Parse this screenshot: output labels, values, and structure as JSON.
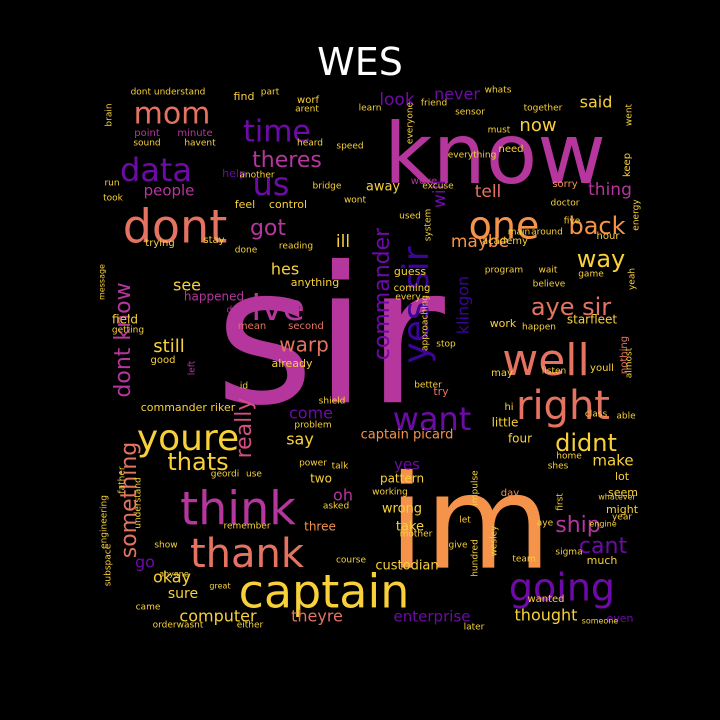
{
  "title": "WES",
  "palette": {
    "magenta": "#b5369c",
    "orange": "#f5934a",
    "yellow": "#f8d13a",
    "salmon": "#e57361",
    "violet": "#6e0ba8",
    "indigo": "#3d049b",
    "pink": "#d14f82"
  },
  "words": [
    {
      "text": "sir",
      "color": "#b5369c"
    },
    {
      "text": "im",
      "color": "#f5934a"
    },
    {
      "text": "know",
      "color": "#b5369c"
    },
    {
      "text": "captain",
      "color": "#f8d13a"
    },
    {
      "text": "think",
      "color": "#b5369c"
    },
    {
      "text": "dont",
      "color": "#e57361"
    },
    {
      "text": "going",
      "color": "#6e0ba8"
    },
    {
      "text": "thank",
      "color": "#e57361"
    },
    {
      "text": "well",
      "color": "#e57361"
    },
    {
      "text": "right",
      "color": "#e57361"
    },
    {
      "text": "one",
      "color": "#f5934a"
    },
    {
      "text": "youre",
      "color": "#f8d13a"
    },
    {
      "text": "yes sir",
      "color": "#3d049b"
    },
    {
      "text": "data",
      "color": "#6e0ba8"
    },
    {
      "text": "mom",
      "color": "#e57361"
    },
    {
      "text": "time",
      "color": "#6e0ba8"
    },
    {
      "text": "want",
      "color": "#6e0ba8"
    },
    {
      "text": "ive",
      "color": "#b5369c"
    },
    {
      "text": "us",
      "color": "#6e0ba8"
    },
    {
      "text": "theres",
      "color": "#b5369c"
    },
    {
      "text": "aye sir",
      "color": "#e57361"
    },
    {
      "text": "back",
      "color": "#f5934a"
    },
    {
      "text": "way",
      "color": "#f8d13a"
    },
    {
      "text": "commander",
      "color": "#6e0ba8"
    },
    {
      "text": "dont know",
      "color": "#b5369c"
    },
    {
      "text": "something",
      "color": "#e57361"
    },
    {
      "text": "really",
      "color": "#d14f82"
    },
    {
      "text": "got",
      "color": "#b5369c"
    },
    {
      "text": "ship",
      "color": "#b5369c"
    },
    {
      "text": "didnt",
      "color": "#f8d13a"
    },
    {
      "text": "cant",
      "color": "#6e0ba8"
    },
    {
      "text": "thats",
      "color": "#f8d13a"
    },
    {
      "text": "warp",
      "color": "#e57361"
    },
    {
      "text": "computer",
      "color": "#f8d13a"
    },
    {
      "text": "thought",
      "color": "#f8d13a"
    },
    {
      "text": "enterprise",
      "color": "#6e0ba8"
    },
    {
      "text": "theyre",
      "color": "#e57361"
    },
    {
      "text": "now",
      "color": "#f8d13a"
    },
    {
      "text": "said",
      "color": "#f8d13a"
    },
    {
      "text": "look",
      "color": "#6e0ba8"
    },
    {
      "text": "never",
      "color": "#6e0ba8"
    },
    {
      "text": "tell",
      "color": "#e57361"
    },
    {
      "text": "thing",
      "color": "#b5369c"
    },
    {
      "text": "people",
      "color": "#b5369c"
    },
    {
      "text": "maybe",
      "color": "#f5934a"
    },
    {
      "text": "will",
      "color": "#6e0ba8"
    },
    {
      "text": "klingon",
      "color": "#3d049b"
    },
    {
      "text": "still",
      "color": "#f8d13a"
    },
    {
      "text": "see",
      "color": "#f8d13a"
    },
    {
      "text": "hes",
      "color": "#f8d13a"
    },
    {
      "text": "ill",
      "color": "#f8d13a"
    },
    {
      "text": "make",
      "color": "#f8d13a"
    },
    {
      "text": "say",
      "color": "#f8d13a"
    },
    {
      "text": "come",
      "color": "#6e0ba8"
    },
    {
      "text": "yes",
      "color": "#6e0ba8"
    },
    {
      "text": "oh",
      "color": "#b5369c"
    },
    {
      "text": "okay",
      "color": "#f8d13a"
    },
    {
      "text": "go",
      "color": "#6e0ba8"
    },
    {
      "text": "sure",
      "color": "#f8d13a"
    },
    {
      "text": "captain picard",
      "color": "#f5934a"
    },
    {
      "text": "custodian",
      "color": "#f8d13a"
    },
    {
      "text": "wrong",
      "color": "#f8d13a"
    },
    {
      "text": "take",
      "color": "#f8d13a"
    },
    {
      "text": "away",
      "color": "#f8d13a"
    },
    {
      "text": "little",
      "color": "#f8d13a"
    },
    {
      "text": "four",
      "color": "#f8d13a"
    },
    {
      "text": "two",
      "color": "#f8d13a"
    },
    {
      "text": "pattern",
      "color": "#f8d13a"
    },
    {
      "text": "three",
      "color": "#f5934a"
    },
    {
      "text": "field",
      "color": "#f8d13a"
    },
    {
      "text": "anything",
      "color": "#f8d13a"
    },
    {
      "text": "happened",
      "color": "#b5369c"
    },
    {
      "text": "already",
      "color": "#f8d13a"
    },
    {
      "text": "commander riker",
      "color": "#f8d13a"
    },
    {
      "text": "starfleet",
      "color": "#f8d13a"
    },
    {
      "text": "work",
      "color": "#f8d13a"
    },
    {
      "text": "seem",
      "color": "#f8d13a"
    },
    {
      "text": "might",
      "color": "#f8d13a"
    },
    {
      "text": "lot",
      "color": "#f8d13a"
    },
    {
      "text": "much",
      "color": "#f8d13a"
    },
    {
      "text": "even",
      "color": "#6e0ba8"
    },
    {
      "text": "wanted",
      "color": "#f8d13a"
    },
    {
      "text": "day",
      "color": "#f5934a"
    },
    {
      "text": "may",
      "color": "#f8d13a"
    },
    {
      "text": "try",
      "color": "#e57361"
    },
    {
      "text": "hi",
      "color": "#f8d13a"
    },
    {
      "text": "guess",
      "color": "#f8d13a"
    },
    {
      "text": "coming",
      "color": "#f8d13a"
    },
    {
      "text": "need",
      "color": "#f8d13a"
    },
    {
      "text": "sorry",
      "color": "#f5934a"
    },
    {
      "text": "point",
      "color": "#b5369c"
    },
    {
      "text": "minute",
      "color": "#b5369c"
    },
    {
      "text": "help",
      "color": "#6e0ba8"
    },
    {
      "text": "find",
      "color": "#f8d13a"
    },
    {
      "text": "worf",
      "color": "#f8d13a"
    },
    {
      "text": "feel",
      "color": "#f8d13a"
    },
    {
      "text": "control",
      "color": "#f8d13a"
    },
    {
      "text": "bridge",
      "color": "#f8d13a"
    },
    {
      "text": "weve",
      "color": "#b5369c"
    },
    {
      "text": "dad",
      "color": "#b5369c"
    },
    {
      "text": "mean",
      "color": "#e57361"
    },
    {
      "text": "second",
      "color": "#e57361"
    },
    {
      "text": "good",
      "color": "#f8d13a"
    },
    {
      "text": "left",
      "color": "#b5369c"
    },
    {
      "text": "id",
      "color": "#f8d13a"
    },
    {
      "text": "trying",
      "color": "#f8d13a"
    },
    {
      "text": "stay",
      "color": "#f8d13a"
    },
    {
      "text": "academy",
      "color": "#f8d13a"
    },
    {
      "text": "hour",
      "color": "#f8d13a"
    },
    {
      "text": "keep",
      "color": "#f8d13a"
    },
    {
      "text": "believe",
      "color": "#f8d13a"
    },
    {
      "text": "program",
      "color": "#f8d13a"
    },
    {
      "text": "wait",
      "color": "#f8d13a"
    },
    {
      "text": "happen",
      "color": "#f8d13a"
    },
    {
      "text": "listen",
      "color": "#f8d13a"
    },
    {
      "text": "nothing",
      "color": "#e57361"
    },
    {
      "text": "youll",
      "color": "#f8d13a"
    },
    {
      "text": "yeah",
      "color": "#f8d13a"
    },
    {
      "text": "almost",
      "color": "#f8d13a"
    },
    {
      "text": "first",
      "color": "#f8d13a"
    },
    {
      "text": "year",
      "color": "#f8d13a"
    },
    {
      "text": "whatever",
      "color": "#f8d13a"
    },
    {
      "text": "engine",
      "color": "#f8d13a"
    },
    {
      "text": "problem",
      "color": "#f8d13a"
    },
    {
      "text": "shield",
      "color": "#f8d13a"
    },
    {
      "text": "power",
      "color": "#f8d13a"
    },
    {
      "text": "talk",
      "color": "#f8d13a"
    },
    {
      "text": "geordi",
      "color": "#f8d13a"
    },
    {
      "text": "use",
      "color": "#f8d13a"
    },
    {
      "text": "asked",
      "color": "#f8d13a"
    },
    {
      "text": "working",
      "color": "#f8d13a"
    },
    {
      "text": "impulse",
      "color": "#f8d13a"
    },
    {
      "text": "let",
      "color": "#f8d13a"
    },
    {
      "text": "give",
      "color": "#f8d13a"
    },
    {
      "text": "hundred",
      "color": "#f8d13a"
    },
    {
      "text": "wesley",
      "color": "#f8d13a"
    },
    {
      "text": "mother",
      "color": "#f8d13a"
    },
    {
      "text": "course",
      "color": "#f8d13a"
    },
    {
      "text": "team",
      "color": "#f8d13a"
    },
    {
      "text": "sigma",
      "color": "#f8d13a"
    },
    {
      "text": "remember",
      "color": "#f8d13a"
    },
    {
      "text": "show",
      "color": "#f8d13a"
    },
    {
      "text": "anyone",
      "color": "#f8d13a"
    },
    {
      "text": "great",
      "color": "#f8d13a"
    },
    {
      "text": "came",
      "color": "#f8d13a"
    },
    {
      "text": "orderwasnt",
      "color": "#f8d13a"
    },
    {
      "text": "either",
      "color": "#f8d13a"
    },
    {
      "text": "later",
      "color": "#f8d13a"
    },
    {
      "text": "someone",
      "color": "#f8d13a"
    },
    {
      "text": "engineering",
      "color": "#f8d13a"
    },
    {
      "text": "subspace",
      "color": "#f8d13a"
    },
    {
      "text": "understand",
      "color": "#f8d13a"
    },
    {
      "text": "father",
      "color": "#f8d13a"
    },
    {
      "text": "message",
      "color": "#f8d13a"
    },
    {
      "text": "getting",
      "color": "#f8d13a"
    },
    {
      "text": "took",
      "color": "#f8d13a"
    },
    {
      "text": "run",
      "color": "#f8d13a"
    },
    {
      "text": "sound",
      "color": "#f8d13a"
    },
    {
      "text": "havent",
      "color": "#f8d13a"
    },
    {
      "text": "heard",
      "color": "#f8d13a"
    },
    {
      "text": "speed",
      "color": "#f8d13a"
    },
    {
      "text": "another",
      "color": "#f8d13a"
    },
    {
      "text": "dont understand",
      "color": "#f8d13a"
    },
    {
      "text": "part",
      "color": "#f8d13a"
    },
    {
      "text": "arent",
      "color": "#f8d13a"
    },
    {
      "text": "learn",
      "color": "#f8d13a"
    },
    {
      "text": "friend",
      "color": "#f8d13a"
    },
    {
      "text": "whats",
      "color": "#f8d13a"
    },
    {
      "text": "sensor",
      "color": "#f8d13a"
    },
    {
      "text": "together",
      "color": "#f8d13a"
    },
    {
      "text": "must",
      "color": "#f8d13a"
    },
    {
      "text": "everything",
      "color": "#f8d13a"
    },
    {
      "text": "went",
      "color": "#f8d13a"
    },
    {
      "text": "brain",
      "color": "#f8d13a"
    },
    {
      "text": "wont",
      "color": "#f8d13a"
    },
    {
      "text": "excuse",
      "color": "#f8d13a"
    },
    {
      "text": "used",
      "color": "#f8d13a"
    },
    {
      "text": "system",
      "color": "#f8d13a"
    },
    {
      "text": "main",
      "color": "#f8d13a"
    },
    {
      "text": "around",
      "color": "#f8d13a"
    },
    {
      "text": "doctor",
      "color": "#f8d13a"
    },
    {
      "text": "five",
      "color": "#f8d13a"
    },
    {
      "text": "energy",
      "color": "#f8d13a"
    },
    {
      "text": "game",
      "color": "#f8d13a"
    },
    {
      "text": "every",
      "color": "#f8d13a"
    },
    {
      "text": "approaching",
      "color": "#f8d13a"
    },
    {
      "text": "stop",
      "color": "#f8d13a"
    },
    {
      "text": "class",
      "color": "#f8d13a"
    },
    {
      "text": "able",
      "color": "#f8d13a"
    },
    {
      "text": "home",
      "color": "#f8d13a"
    },
    {
      "text": "shes",
      "color": "#f8d13a"
    },
    {
      "text": "reading",
      "color": "#f8d13a"
    },
    {
      "text": "done",
      "color": "#f8d13a"
    },
    {
      "text": "aye",
      "color": "#f8d13a"
    },
    {
      "text": "better",
      "color": "#f8d13a"
    },
    {
      "text": "everyone",
      "color": "#f8d13a"
    }
  ]
}
